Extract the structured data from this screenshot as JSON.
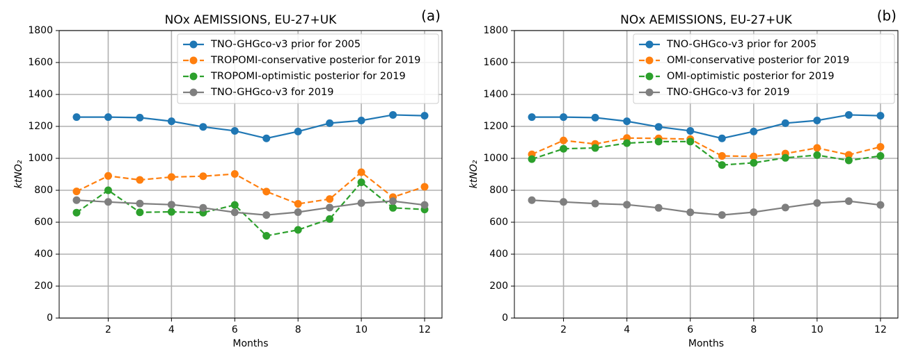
{
  "chart_data": [
    {
      "type": "line",
      "title": "NOx AEMISSIONS, EU-27+UK",
      "panel_label": "(a)",
      "xlabel": "Months",
      "ylabel": "ktNO₂",
      "x": [
        1,
        2,
        3,
        4,
        5,
        6,
        7,
        8,
        9,
        10,
        11,
        12
      ],
      "xlim": [
        0.45,
        12.55
      ],
      "xticks": [
        2,
        4,
        6,
        8,
        10,
        12
      ],
      "ylim": [
        0,
        1800
      ],
      "yticks": [
        0,
        200,
        400,
        600,
        800,
        1000,
        1200,
        1400,
        1600,
        1800
      ],
      "grid": true,
      "legend_loc": "upper right",
      "series": [
        {
          "name": "TNO-GHGco-v3 prior for 2005",
          "color": "#1f77b4",
          "linestyle": "solid",
          "values": [
            1258,
            1258,
            1255,
            1232,
            1197,
            1172,
            1125,
            1168,
            1220,
            1237,
            1272,
            1267
          ]
        },
        {
          "name": "TROPOMI-conservative posterior for 2019",
          "color": "#ff7f0e",
          "linestyle": "dashed",
          "values": [
            793,
            890,
            865,
            883,
            888,
            902,
            792,
            715,
            745,
            913,
            757,
            822
          ]
        },
        {
          "name": "TROPOMI-optimistic posterior for 2019",
          "color": "#2ca02c",
          "linestyle": "dashed",
          "values": [
            660,
            800,
            662,
            665,
            660,
            708,
            515,
            552,
            620,
            850,
            690,
            680
          ]
        },
        {
          "name": "TNO-GHGco-v3 for 2019",
          "color": "#7f7f7f",
          "linestyle": "solid",
          "values": [
            738,
            727,
            717,
            710,
            690,
            662,
            645,
            663,
            692,
            720,
            732,
            708
          ]
        }
      ]
    },
    {
      "type": "line",
      "title": "NOx AEMISSIONS, EU-27+UK",
      "panel_label": "(b)",
      "xlabel": "Months",
      "ylabel": "ktNO₂",
      "x": [
        1,
        2,
        3,
        4,
        5,
        6,
        7,
        8,
        9,
        10,
        11,
        12
      ],
      "xlim": [
        0.45,
        12.55
      ],
      "xticks": [
        2,
        4,
        6,
        8,
        10,
        12
      ],
      "ylim": [
        0,
        1800
      ],
      "yticks": [
        0,
        200,
        400,
        600,
        800,
        1000,
        1200,
        1400,
        1600,
        1800
      ],
      "grid": true,
      "legend_loc": "upper right",
      "series": [
        {
          "name": "TNO-GHGco-v3 prior for 2005",
          "color": "#1f77b4",
          "linestyle": "solid",
          "values": [
            1258,
            1258,
            1255,
            1232,
            1197,
            1172,
            1125,
            1168,
            1220,
            1237,
            1272,
            1267
          ]
        },
        {
          "name": "OMI-conservative posterior for 2019",
          "color": "#ff7f0e",
          "linestyle": "dashed",
          "values": [
            1025,
            1112,
            1090,
            1127,
            1125,
            1120,
            1015,
            1012,
            1030,
            1065,
            1022,
            1072
          ]
        },
        {
          "name": "OMI-optimistic posterior for 2019",
          "color": "#2ca02c",
          "linestyle": "dashed",
          "values": [
            995,
            1060,
            1065,
            1095,
            1105,
            1105,
            958,
            972,
            1003,
            1020,
            987,
            1015
          ]
        },
        {
          "name": "TNO-GHGco-v3 for 2019",
          "color": "#7f7f7f",
          "linestyle": "solid",
          "values": [
            738,
            727,
            717,
            710,
            690,
            662,
            645,
            663,
            692,
            720,
            732,
            708
          ]
        }
      ]
    }
  ]
}
